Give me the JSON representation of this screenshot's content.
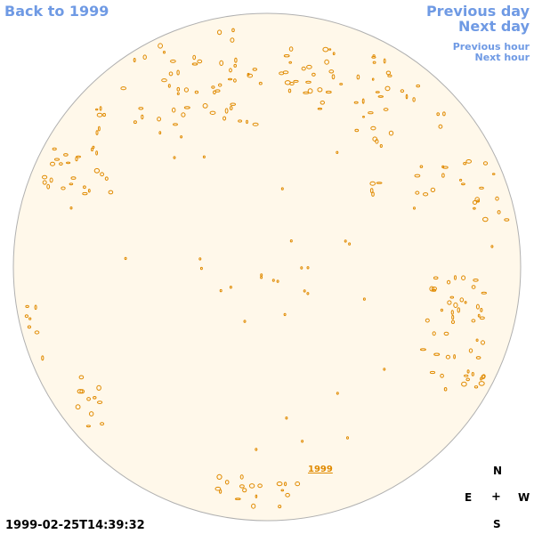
{
  "nav": {
    "back": "Back to 1999",
    "previous_day": "Previous day",
    "next_day": "Next day",
    "previous_hour": "Previous hour",
    "next_hour": "Next hour"
  },
  "timestamp": "1999-02-25T14:39:32",
  "year_link": "1999",
  "compass": {
    "north": "N",
    "south": "S",
    "east": "E",
    "west": "W",
    "center": "+"
  },
  "colors": {
    "link": "#6f9ae4",
    "disk_fill": "#fff8ea",
    "disk_border": "#b0b0b0",
    "contour": "#e08a00"
  }
}
